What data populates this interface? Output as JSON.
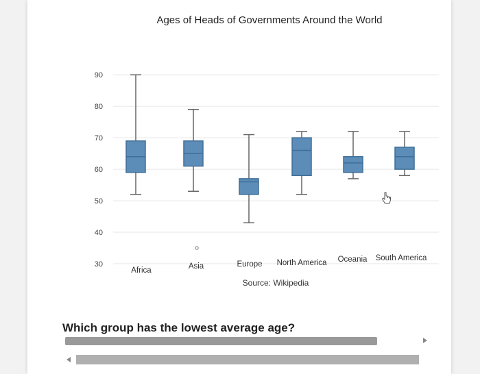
{
  "chart_data": {
    "type": "boxplot",
    "title": "Ages of Heads of Governments Around the World",
    "source": "Source: Wikipedia",
    "ylim": [
      30,
      92
    ],
    "yticks": [
      30,
      40,
      50,
      60,
      70,
      80,
      90
    ],
    "categories": [
      "Africa",
      "Asia",
      "Europe",
      "North America",
      "Oceania",
      "South America"
    ],
    "boxes": [
      {
        "category": "Africa",
        "min": 52,
        "q1": 59,
        "median": 64,
        "q3": 69,
        "max": 90
      },
      {
        "category": "Asia",
        "min": 53,
        "q1": 61,
        "median": 65,
        "q3": 69,
        "max": 79,
        "outliers": [
          35
        ]
      },
      {
        "category": "Europe",
        "min": 43,
        "q1": 52,
        "median": 56,
        "q3": 57,
        "max": 71
      },
      {
        "category": "North America",
        "min": 52,
        "q1": 58,
        "median": 66,
        "q3": 70,
        "max": 72
      },
      {
        "category": "Oceania",
        "min": 57,
        "q1": 59,
        "median": 62,
        "q3": 64,
        "max": 72
      },
      {
        "category": "South America",
        "min": 58,
        "q1": 60,
        "median": 64,
        "q3": 67,
        "max": 72
      }
    ],
    "box_color": "#5b8db8",
    "box_stroke": "#3f6f97"
  },
  "question": {
    "text": "Which group has the lowest average age?"
  },
  "icons": {
    "cursor": "hand-pointer-icon",
    "scroll_right": "arrow-right-icon",
    "scroll_left": "arrow-left-icon"
  }
}
